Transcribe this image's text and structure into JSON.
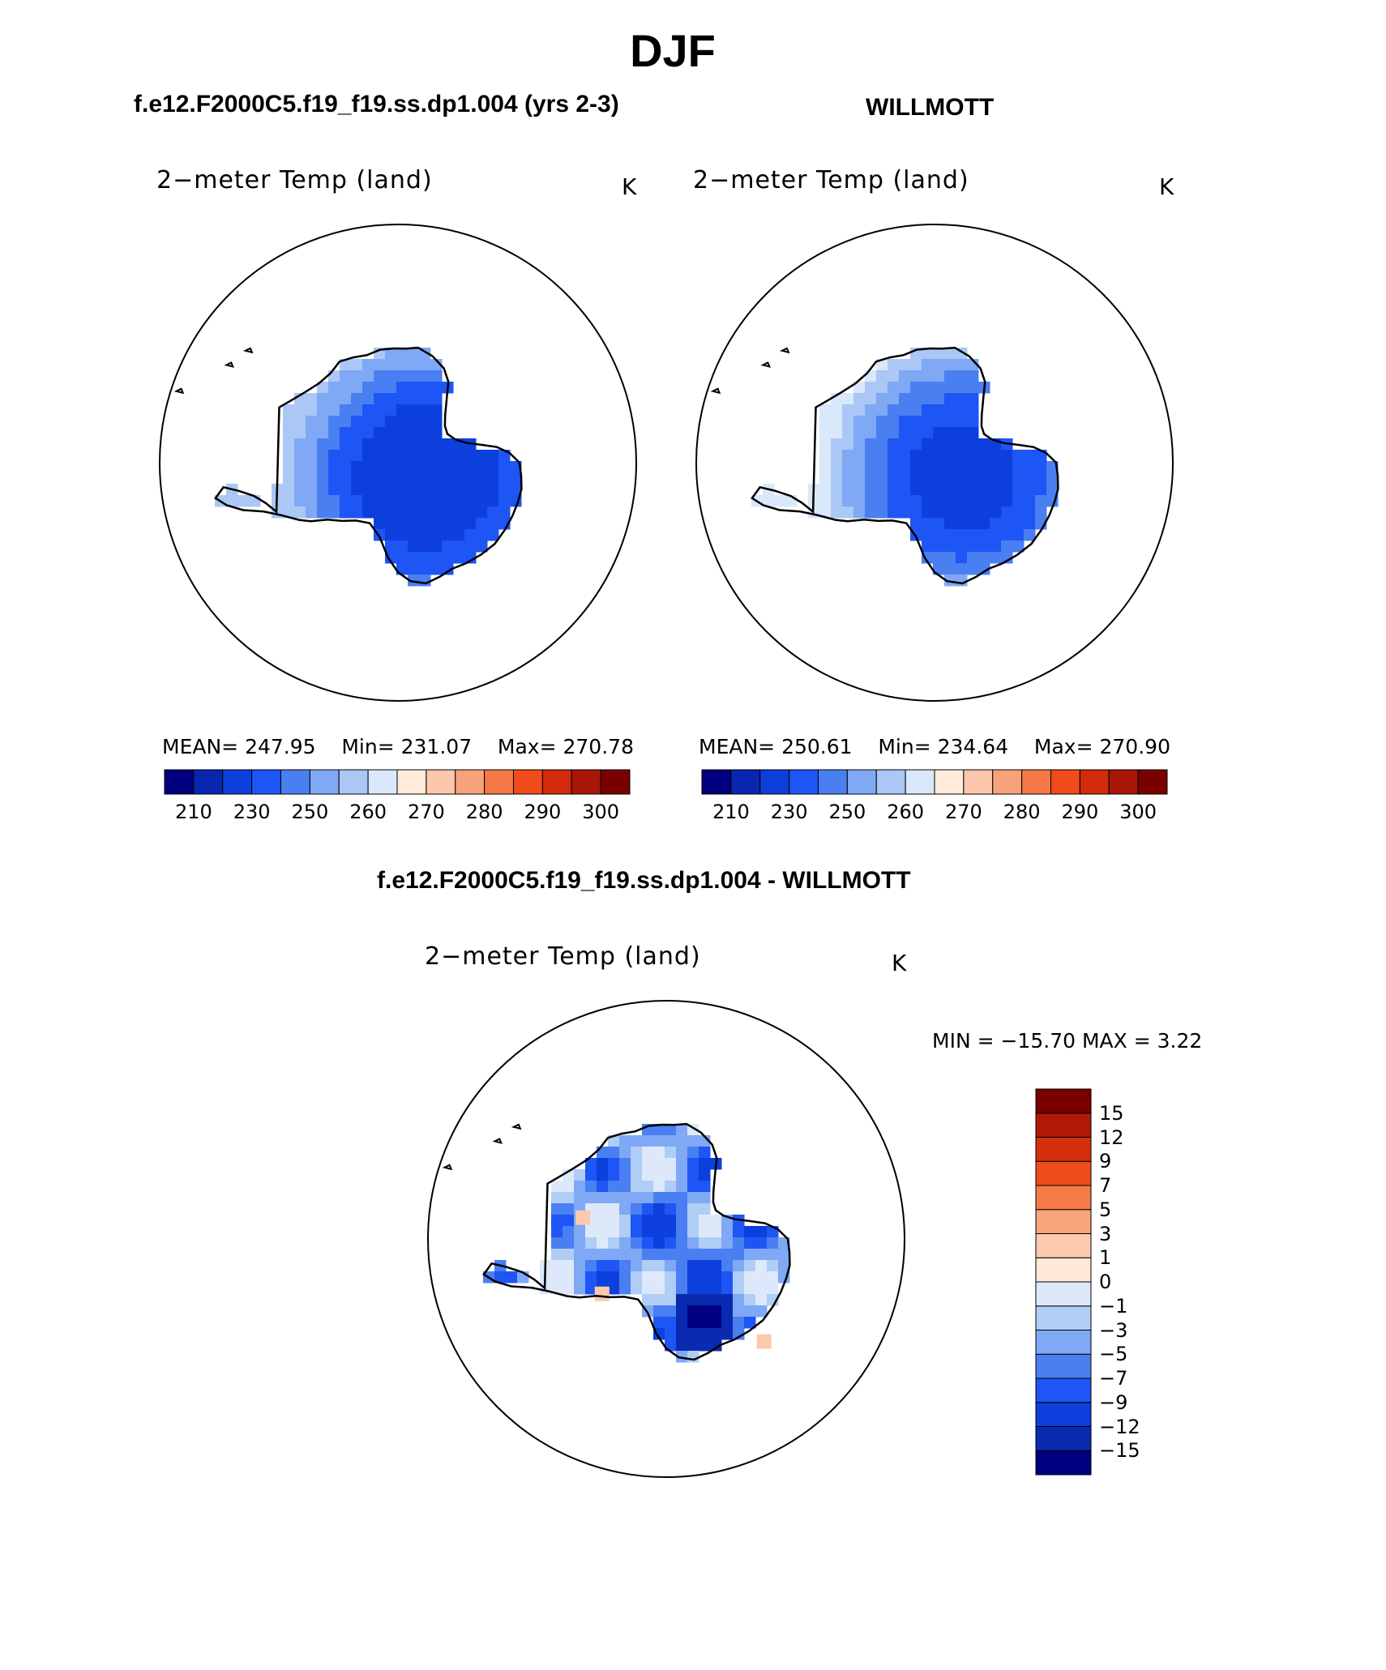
{
  "page_title": "DJF",
  "colors": {
    "cont_pal": [
      "#000080",
      "#0826b0",
      "#0d3fdd",
      "#1e55f5",
      "#4a7ff2",
      "#7fa8f5",
      "#aac7f5",
      "#d9e8fb",
      "#feebd9",
      "#fcc7ac",
      "#f8a27a",
      "#f57846",
      "#f04b1a",
      "#d22a0a",
      "#a81605",
      "#7a0000"
    ],
    "diff_pal": [
      "#000080",
      "#0a2ab0",
      "#0d3fdd",
      "#1e55f5",
      "#4a7ff2",
      "#7fa8f5",
      "#b0cdf5",
      "#dde9fb",
      "#fde9d5",
      "#fbc9ad",
      "#f8a57e",
      "#f47a47",
      "#ef4c1b",
      "#d52f0b",
      "#b01a05",
      "#7a0000"
    ],
    "outline": "#000000"
  },
  "top_panels": [
    {
      "case_title": "f.e12.F2000C5.f19_f19.ss.dp1.004 (yrs 2-3)",
      "variable": "2−meter Temp (land)",
      "units": "K",
      "mean_label": "MEAN=",
      "mean": "247.95",
      "min_label": "Min=",
      "min": "231.07",
      "max_label": "Max=",
      "max": "270.78"
    },
    {
      "case_title": "WILLMOTT",
      "variable": "2−meter Temp (land)",
      "units": "K",
      "mean_label": "MEAN=",
      "mean": "250.61",
      "min_label": "Min=",
      "min": "234.64",
      "max_label": "Max=",
      "max": "270.90"
    }
  ],
  "contour_ticks": [
    "210",
    "230",
    "250",
    "260",
    "270",
    "280",
    "290",
    "300"
  ],
  "diff_panel": {
    "case_title": "f.e12.F2000C5.f19_f19.ss.dp1.004 - WILLMOTT",
    "variable": "2−meter Temp (land)",
    "units": "K",
    "minmax_text": "MIN = −15.70 MAX =     3.22",
    "ticks": [
      "15",
      "12",
      "9",
      "7",
      "5",
      "3",
      "1",
      "0",
      "−1",
      "−3",
      "−5",
      "−7",
      "−9",
      "−12",
      "−15"
    ]
  },
  "chart_data": [
    {
      "type": "heatmap",
      "title": "f.e12.F2000C5.f19_f19.ss.dp1.004 (yrs 2-3)",
      "subtitle": "2−meter Temp (land)",
      "projection": "south polar stereographic",
      "units": "K",
      "mean": 247.95,
      "min": 231.07,
      "max": 270.78,
      "levels": [
        210,
        230,
        250,
        260,
        270,
        280,
        290,
        300
      ]
    },
    {
      "type": "heatmap",
      "title": "WILLMOTT",
      "subtitle": "2−meter Temp (land)",
      "projection": "south polar stereographic",
      "units": "K",
      "mean": 250.61,
      "min": 234.64,
      "max": 270.9,
      "levels": [
        210,
        230,
        250,
        260,
        270,
        280,
        290,
        300
      ]
    },
    {
      "type": "heatmap",
      "title": "f.e12.F2000C5.f19_f19.ss.dp1.004 - WILLMOTT",
      "subtitle": "2−meter Temp (land)",
      "projection": "south polar stereographic",
      "units": "K",
      "min": -15.7,
      "max": 3.22,
      "levels": [
        -15,
        -12,
        -9,
        -7,
        -5,
        -3,
        -1,
        0,
        1,
        3,
        5,
        7,
        9,
        12,
        15
      ]
    }
  ]
}
